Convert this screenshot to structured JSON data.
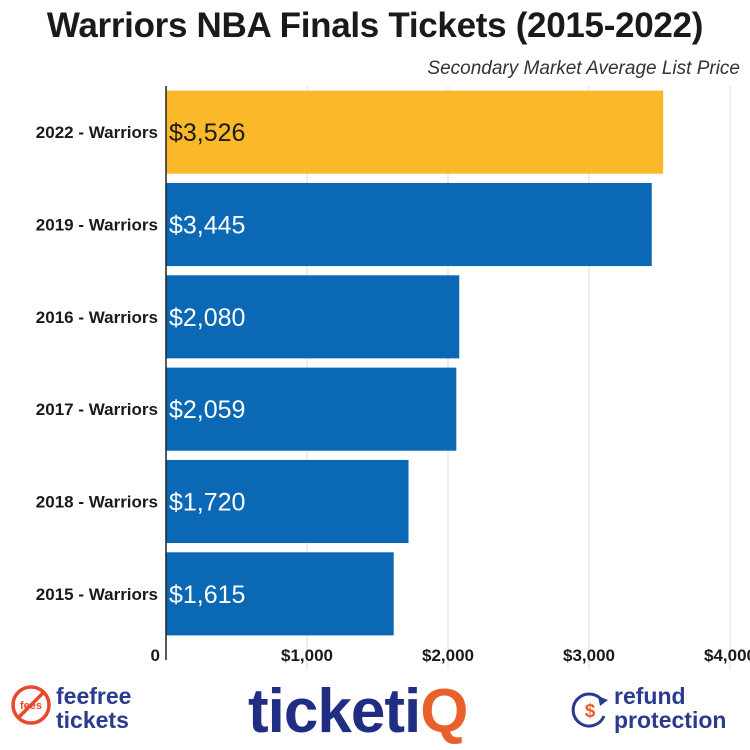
{
  "chart_data": {
    "type": "bar",
    "orientation": "horizontal",
    "title": "Warriors NBA Finals Tickets (2015-2022)",
    "subtitle": "Secondary Market Average List Price",
    "categories": [
      "2022 - Warriors",
      "2019 - Warriors",
      "2016 - Warriors",
      "2017 - Warriors",
      "2018 - Warriors",
      "2015 - Warriors"
    ],
    "values": [
      3526,
      3445,
      2080,
      2059,
      1720,
      1615
    ],
    "value_labels": [
      "$3,526",
      "$3,445",
      "$2,080",
      "$2,059",
      "$1,720",
      "$1,615"
    ],
    "bar_colors": [
      "#fbb829",
      "#0b68b4",
      "#0b68b4",
      "#0b68b4",
      "#0b68b4",
      "#0b68b4"
    ],
    "label_colors": [
      "#1a1a1a",
      "#ffffff",
      "#ffffff",
      "#ffffff",
      "#ffffff",
      "#ffffff"
    ],
    "xticks": [
      0,
      1000,
      2000,
      3000,
      4000
    ],
    "xtick_labels": [
      "0",
      "$1,000",
      "$2,000",
      "$3,000",
      "$4,000"
    ],
    "xlim": [
      0,
      4000
    ],
    "grid": true
  },
  "footer": {
    "feefree_icon_text": "fees",
    "feefree_line1": "feefree",
    "feefree_line2": "tickets",
    "brand_main": "ticketi",
    "brand_accent": "Q",
    "refund_icon_text": "$",
    "refund_line1": "refund",
    "refund_line2": "protection"
  },
  "colors": {
    "highlight": "#fbb829",
    "bar": "#0b68b4",
    "brand": "#1f2d82",
    "brand_accent": "#e8602b",
    "badge_red": "#e8482b"
  }
}
